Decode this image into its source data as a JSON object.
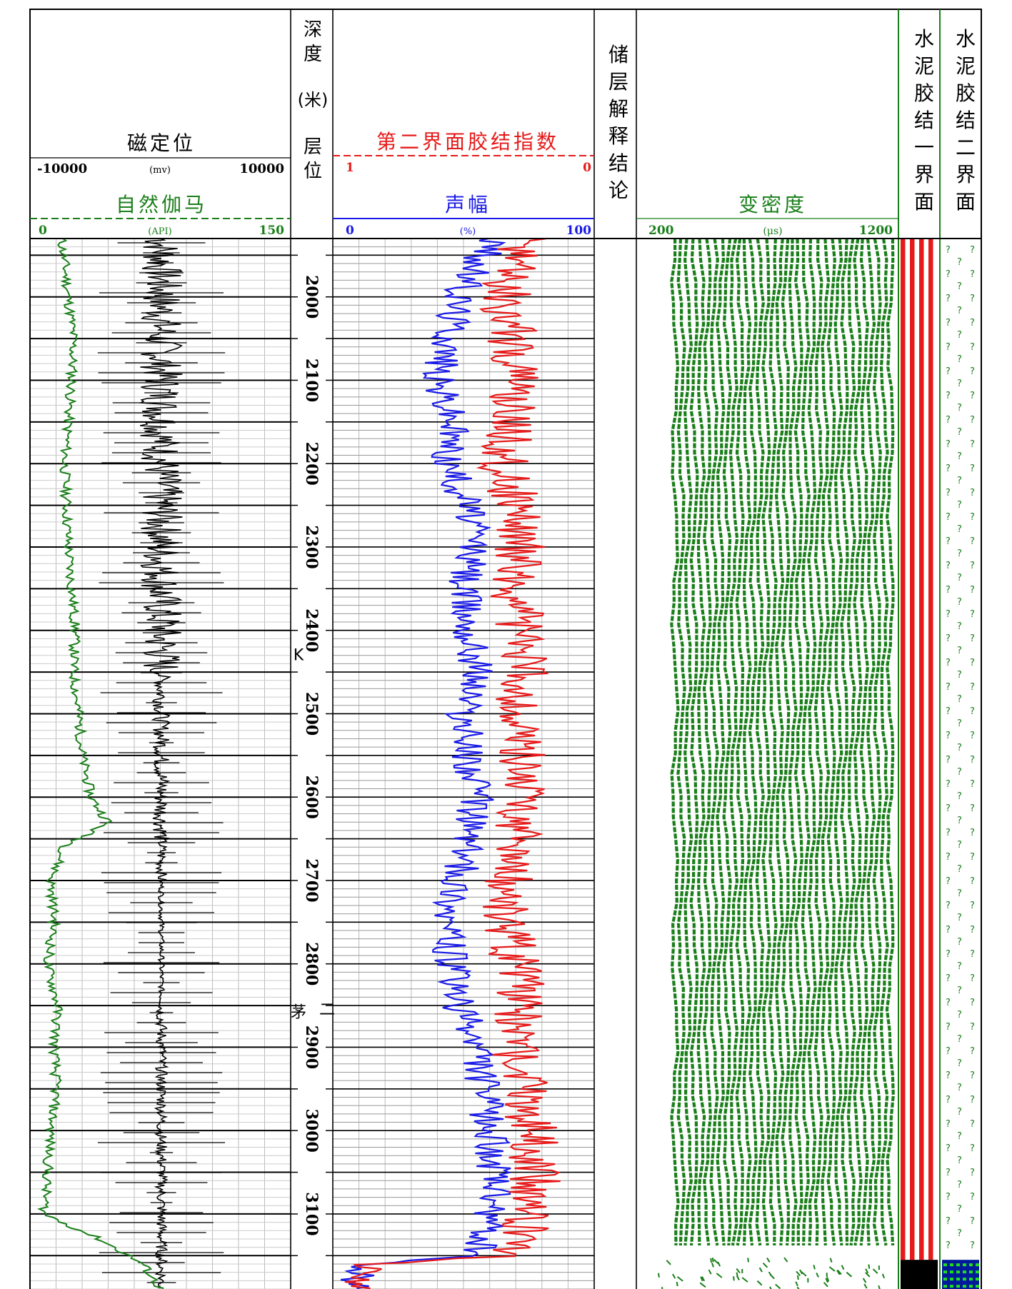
{
  "tracks": {
    "ccl": {
      "title": "磁定位",
      "unit": "(mv)",
      "min": "-10000",
      "max": "10000"
    },
    "gr": {
      "title": "自然伽马",
      "unit": "(API)",
      "min": "0",
      "max": "150"
    },
    "depth": {
      "title_chars": [
        "深",
        "度"
      ],
      "unit": "(米)",
      "sub_chars": [
        "层",
        "位"
      ]
    },
    "cbi2": {
      "title": "第二界面胶结指数",
      "min": "1",
      "max": "0"
    },
    "amp": {
      "title": "声幅",
      "unit": "(%)",
      "min": "0",
      "max": "100"
    },
    "reservoir": {
      "title_chars": [
        "储",
        "层",
        "解",
        "释",
        "结",
        "论"
      ]
    },
    "vdl": {
      "title": "变密度",
      "unit": "(μs)",
      "min": "200",
      "max": "1200"
    },
    "bond1": {
      "title_chars": [
        "水",
        "泥",
        "胶",
        "结",
        "一",
        "界",
        "面"
      ]
    },
    "bond2": {
      "title_chars": [
        "水",
        "泥",
        "胶",
        "结",
        "二",
        "界",
        "面"
      ]
    }
  },
  "chart_data": {
    "type": "line",
    "depth_axis": {
      "start": 1930,
      "end": 3190,
      "tick_labels": [
        "2000",
        "2100",
        "2200",
        "2300",
        "2400",
        "2500",
        "2600",
        "2700",
        "2800",
        "2900",
        "3000",
        "3100"
      ]
    },
    "formations": [
      {
        "label": "K",
        "depth": 2436
      },
      {
        "label": "茅",
        "depth": 2864
      },
      {
        "label": "二",
        "depth": 2861
      }
    ],
    "series": [
      {
        "track": "gr",
        "color": "#1a7f1a",
        "depth": [
          1930,
          1960,
          2000,
          2050,
          2100,
          2150,
          2200,
          2250,
          2300,
          2350,
          2400,
          2450,
          2500,
          2550,
          2600,
          2630,
          2660,
          2700,
          2750,
          2800,
          2850,
          2900,
          2950,
          3000,
          3050,
          3100,
          3130,
          3160,
          3190
        ],
        "values": [
          18,
          20,
          22,
          25,
          24,
          22,
          20,
          21,
          22,
          24,
          26,
          25,
          28,
          30,
          35,
          45,
          20,
          12,
          14,
          10,
          16,
          14,
          15,
          12,
          10,
          8,
          40,
          65,
          75
        ]
      },
      {
        "track": "amp",
        "color": "#1a1ae6",
        "depth": [
          1930,
          1960,
          2000,
          2050,
          2100,
          2150,
          2200,
          2250,
          2300,
          2350,
          2400,
          2450,
          2500,
          2550,
          2600,
          2650,
          2700,
          2750,
          2800,
          2850,
          2900,
          2950,
          3000,
          3050,
          3100,
          3150,
          3160,
          3190
        ],
        "values": [
          62,
          55,
          48,
          45,
          40,
          46,
          44,
          52,
          54,
          50,
          52,
          56,
          50,
          52,
          55,
          52,
          48,
          44,
          45,
          48,
          55,
          58,
          60,
          62,
          60,
          55,
          10,
          8
        ]
      },
      {
        "track": "cbi2",
        "color": "#e61a1a",
        "depth": [
          1930,
          1960,
          2000,
          2050,
          2100,
          2150,
          2200,
          2250,
          2300,
          2350,
          2400,
          2450,
          2500,
          2550,
          2600,
          2650,
          2700,
          2750,
          2800,
          2850,
          2900,
          2950,
          3000,
          3050,
          3100,
          3150,
          3160,
          3190
        ],
        "values": [
          0.28,
          0.3,
          0.34,
          0.32,
          0.3,
          0.33,
          0.35,
          0.3,
          0.28,
          0.3,
          0.28,
          0.26,
          0.3,
          0.28,
          0.26,
          0.3,
          0.32,
          0.34,
          0.3,
          0.28,
          0.3,
          0.26,
          0.24,
          0.22,
          0.25,
          0.3,
          0.85,
          0.9
        ]
      }
    ],
    "bond1": {
      "color": "#e61a1a",
      "stripe_color": "#ffffff",
      "bottom_block_color": "#000000",
      "bottom_block_from_depth": 3155
    },
    "bond2": {
      "symbol": "?",
      "symbol_color": "#1a7f1a",
      "bottom_block_color": "#0022cc",
      "bottom_block_from_depth": 3155
    },
    "grid": true
  }
}
